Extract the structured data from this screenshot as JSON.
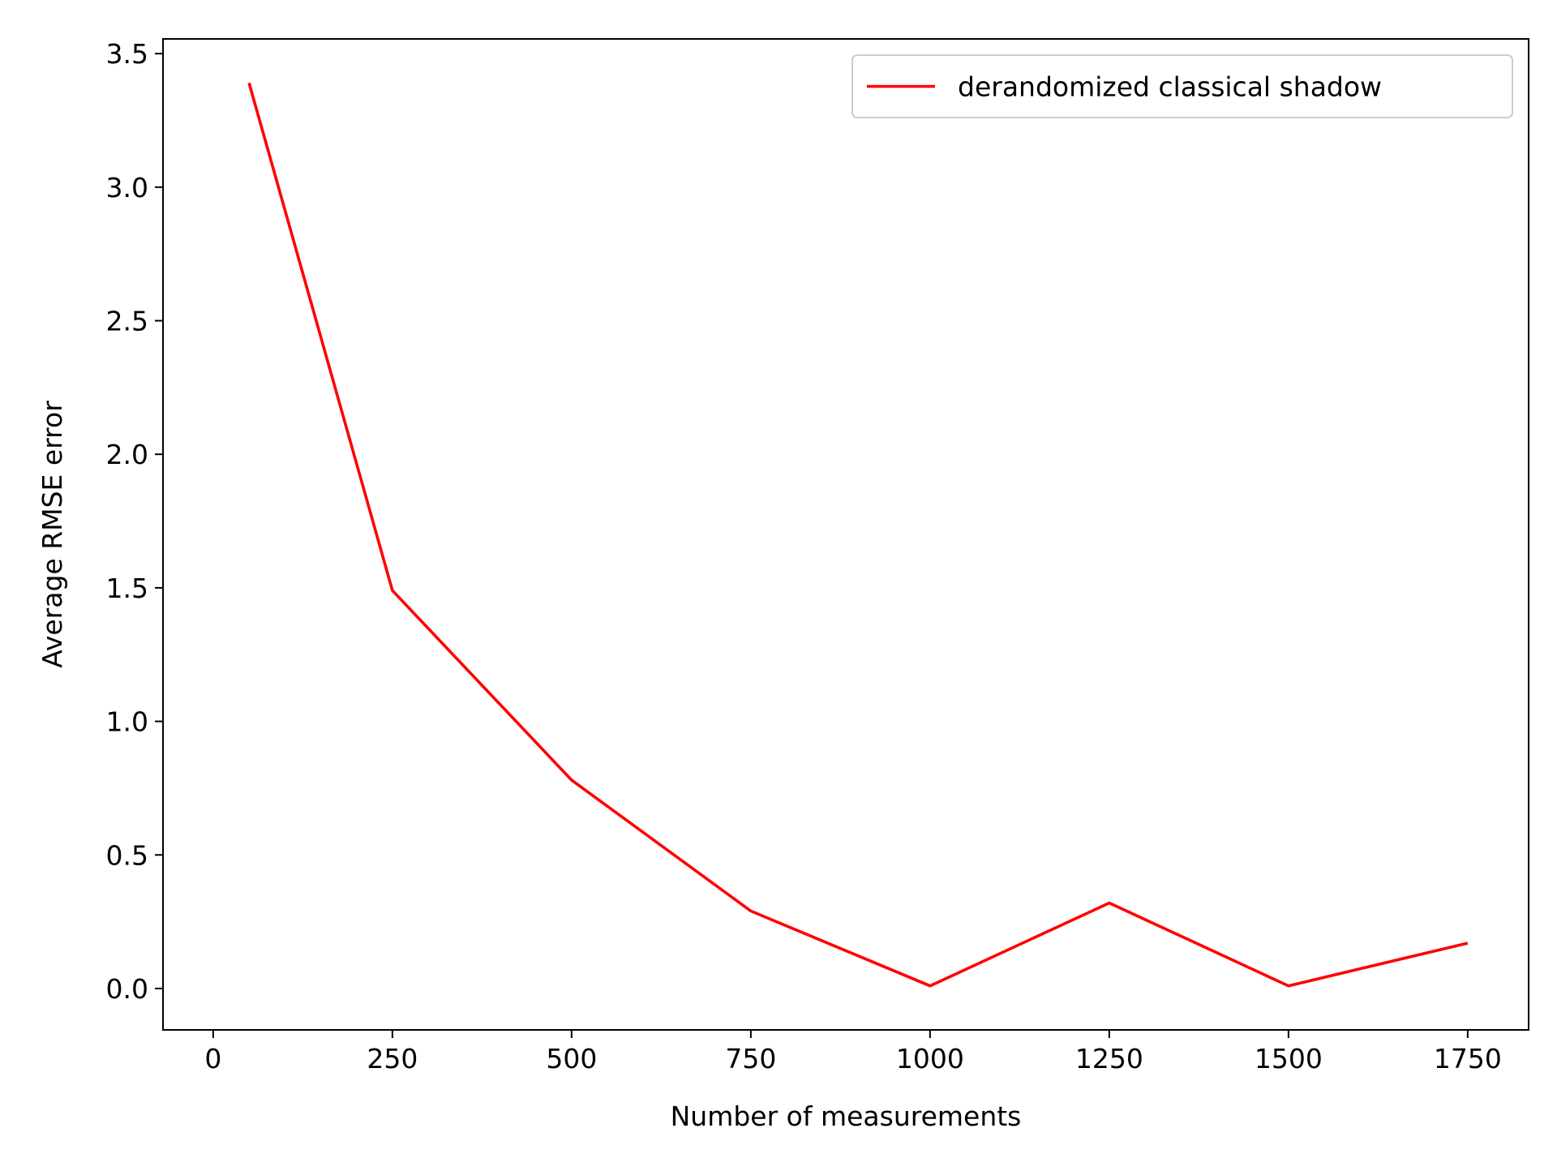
{
  "chart_data": {
    "type": "line",
    "title": "",
    "xlabel": "Number of measurements",
    "ylabel": "Average RMSE error",
    "xlim": [
      -70,
      1835
    ],
    "ylim": [
      -0.155,
      3.555
    ],
    "xticks": [
      0,
      250,
      500,
      750,
      1000,
      1250,
      1500,
      1750
    ],
    "xtick_labels": [
      "0",
      "250",
      "500",
      "750",
      "1000",
      "1250",
      "1500",
      "1750"
    ],
    "yticks": [
      0.0,
      0.5,
      1.0,
      1.5,
      2.0,
      2.5,
      3.0,
      3.5
    ],
    "ytick_labels": [
      "0.0",
      "0.5",
      "1.0",
      "1.5",
      "2.0",
      "2.5",
      "3.0",
      "3.5"
    ],
    "grid": false,
    "legend_position": "top-right",
    "series": [
      {
        "name": "derandomized classical shadow",
        "color": "#ff0000",
        "x": [
          50,
          250,
          500,
          750,
          1000,
          1250,
          1500,
          1750
        ],
        "y": [
          3.39,
          1.49,
          0.78,
          0.29,
          0.01,
          0.32,
          0.01,
          0.17
        ]
      }
    ]
  }
}
